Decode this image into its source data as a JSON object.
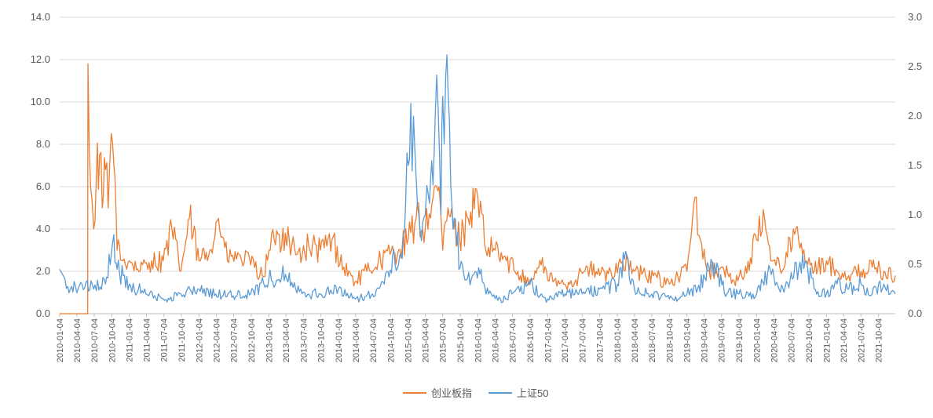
{
  "chart_data": {
    "type": "line",
    "left_axis": {
      "ylim": [
        0,
        14
      ],
      "ticks": [
        "0.0",
        "2.0",
        "4.0",
        "6.0",
        "8.0",
        "10.0",
        "12.0",
        "14.0"
      ]
    },
    "right_axis": {
      "ylim": [
        0,
        3
      ],
      "ticks": [
        "0.0",
        "0.5",
        "1.0",
        "1.5",
        "2.0",
        "2.5",
        "3.0"
      ]
    },
    "grid": true,
    "legend_position": "bottom",
    "x_tick_labels": [
      "2010-01-04",
      "2010-04-04",
      "2010-07-04",
      "2010-10-04",
      "2011-01-04",
      "2011-04-04",
      "2011-07-04",
      "2011-10-04",
      "2012-01-04",
      "2012-04-04",
      "2012-07-04",
      "2012-10-04",
      "2013-01-04",
      "2013-04-04",
      "2013-07-04",
      "2013-10-04",
      "2014-01-04",
      "2014-04-04",
      "2014-07-04",
      "2014-10-04",
      "2015-01-04",
      "2015-04-04",
      "2015-07-04",
      "2015-10-04",
      "2016-01-04",
      "2016-04-04",
      "2016-07-04",
      "2016-10-04",
      "2017-01-04",
      "2017-04-04",
      "2017-07-04",
      "2017-10-04",
      "2018-01-04",
      "2018-04-04",
      "2018-07-04",
      "2018-10-04",
      "2019-01-04",
      "2019-04-04",
      "2019-07-04",
      "2019-10-04",
      "2020-01-04",
      "2020-04-04",
      "2020-07-04",
      "2020-10-04",
      "2021-01-04",
      "2021-04-04",
      "2021-07-04",
      "2021-10-04"
    ],
    "series": [
      {
        "name": "创业板指",
        "axis": "left",
        "color": "#ED7D31",
        "x": [
          "2010-01-04",
          "2010-05-31",
          "2010-06-01",
          "2010-06-15",
          "2010-07-01",
          "2010-07-15",
          "2010-08-01",
          "2010-08-15",
          "2010-09-01",
          "2010-09-15",
          "2010-10-01",
          "2010-10-15",
          "2010-11-01",
          "2010-12-01",
          "2011-01-04",
          "2011-03-01",
          "2011-05-01",
          "2011-07-01",
          "2011-08-15",
          "2011-10-01",
          "2011-11-15",
          "2012-01-04",
          "2012-03-01",
          "2012-04-15",
          "2012-06-01",
          "2012-08-01",
          "2012-10-01",
          "2012-12-01",
          "2013-02-01",
          "2013-04-01",
          "2013-06-01",
          "2013-08-01",
          "2013-10-01",
          "2013-12-01",
          "2014-02-01",
          "2014-04-01",
          "2014-06-01",
          "2014-08-01",
          "2014-10-01",
          "2014-11-15",
          "2015-01-04",
          "2015-02-15",
          "2015-04-04",
          "2015-05-15",
          "2015-06-15",
          "2015-07-04",
          "2015-08-01",
          "2015-09-01",
          "2015-10-01",
          "2015-11-15",
          "2016-01-04",
          "2016-02-15",
          "2016-04-04",
          "2016-06-01",
          "2016-08-01",
          "2016-10-04",
          "2016-12-01",
          "2017-02-01",
          "2017-04-04",
          "2017-06-01",
          "2017-08-01",
          "2017-10-04",
          "2017-12-01",
          "2018-02-01",
          "2018-04-04",
          "2018-06-01",
          "2018-08-01",
          "2018-10-04",
          "2018-12-01",
          "2019-01-04",
          "2019-02-15",
          "2019-03-15",
          "2019-05-01",
          "2019-07-04",
          "2019-09-01",
          "2019-11-01",
          "2020-01-04",
          "2020-02-15",
          "2020-04-01",
          "2020-06-01",
          "2020-07-15",
          "2020-09-01",
          "2020-11-01",
          "2021-01-04",
          "2021-03-01",
          "2021-05-01",
          "2021-07-04",
          "2021-09-01",
          "2021-11-01",
          "2021-12-31"
        ],
        "values": [
          0.0,
          0.0,
          11.8,
          6.0,
          4.0,
          6.5,
          7.5,
          5.0,
          6.8,
          5.0,
          8.5,
          7.0,
          3.0,
          2.5,
          2.5,
          2.0,
          2.5,
          2.5,
          4.0,
          2.0,
          4.5,
          2.5,
          3.0,
          4.5,
          2.5,
          2.8,
          2.3,
          1.8,
          3.5,
          3.8,
          2.8,
          3.2,
          3.0,
          3.5,
          2.2,
          1.5,
          2.0,
          2.5,
          2.8,
          3.0,
          3.5,
          4.5,
          4.0,
          5.5,
          6.0,
          3.0,
          5.0,
          4.0,
          3.5,
          4.5,
          5.5,
          3.0,
          3.0,
          2.5,
          2.0,
          1.6,
          2.3,
          1.5,
          1.4,
          1.6,
          2.2,
          1.8,
          2.0,
          2.5,
          2.0,
          1.8,
          1.7,
          1.4,
          1.8,
          2.0,
          5.5,
          3.5,
          2.0,
          2.2,
          1.6,
          1.8,
          3.5,
          4.5,
          2.5,
          2.3,
          4.0,
          2.8,
          2.0,
          2.5,
          2.0,
          1.8,
          2.0,
          2.2,
          2.0,
          1.8
        ]
      },
      {
        "name": "上证50",
        "axis": "right",
        "color": "#5B9BD5",
        "x": [
          "2010-01-04",
          "2010-02-01",
          "2010-03-01",
          "2010-05-01",
          "2010-07-01",
          "2010-09-01",
          "2010-10-15",
          "2010-11-01",
          "2011-01-04",
          "2011-04-01",
          "2011-07-01",
          "2011-10-01",
          "2012-01-04",
          "2012-04-01",
          "2012-07-01",
          "2012-10-01",
          "2013-01-04",
          "2013-04-01",
          "2013-06-20",
          "2013-08-01",
          "2013-10-01",
          "2014-01-04",
          "2014-04-01",
          "2014-07-01",
          "2014-09-01",
          "2014-10-15",
          "2014-11-15",
          "2014-12-10",
          "2015-01-04",
          "2015-02-01",
          "2015-03-01",
          "2015-04-04",
          "2015-04-20",
          "2015-05-20",
          "2015-06-10",
          "2015-06-25",
          "2015-07-04",
          "2015-07-20",
          "2015-08-15",
          "2015-09-15",
          "2015-10-15",
          "2015-12-01",
          "2016-01-15",
          "2016-03-01",
          "2016-05-01",
          "2016-07-01",
          "2016-10-04",
          "2017-01-04",
          "2017-04-04",
          "2017-07-04",
          "2017-10-04",
          "2018-01-04",
          "2018-02-10",
          "2018-04-04",
          "2018-07-04",
          "2018-10-04",
          "2019-01-04",
          "2019-03-01",
          "2019-05-10",
          "2019-08-01",
          "2019-10-04",
          "2020-01-04",
          "2020-03-15",
          "2020-05-01",
          "2020-07-10",
          "2020-09-01",
          "2020-11-01",
          "2021-01-04",
          "2021-03-01",
          "2021-05-01",
          "2021-07-04",
          "2021-09-01",
          "2021-11-01",
          "2021-12-31"
        ],
        "values": [
          0.45,
          0.35,
          0.25,
          0.3,
          0.25,
          0.3,
          0.8,
          0.45,
          0.3,
          0.2,
          0.15,
          0.2,
          0.25,
          0.2,
          0.18,
          0.2,
          0.35,
          0.4,
          0.25,
          0.2,
          0.2,
          0.25,
          0.15,
          0.2,
          0.3,
          0.6,
          0.5,
          0.8,
          1.5,
          2.0,
          1.0,
          1.0,
          1.2,
          1.6,
          2.1,
          1.0,
          2.2,
          2.4,
          1.3,
          0.7,
          0.5,
          0.35,
          0.4,
          0.2,
          0.15,
          0.2,
          0.3,
          0.15,
          0.2,
          0.2,
          0.25,
          0.3,
          0.55,
          0.25,
          0.2,
          0.15,
          0.2,
          0.25,
          0.55,
          0.2,
          0.2,
          0.2,
          0.45,
          0.25,
          0.35,
          0.6,
          0.25,
          0.2,
          0.3,
          0.25,
          0.3,
          0.2,
          0.3,
          0.2
        ]
      }
    ]
  }
}
